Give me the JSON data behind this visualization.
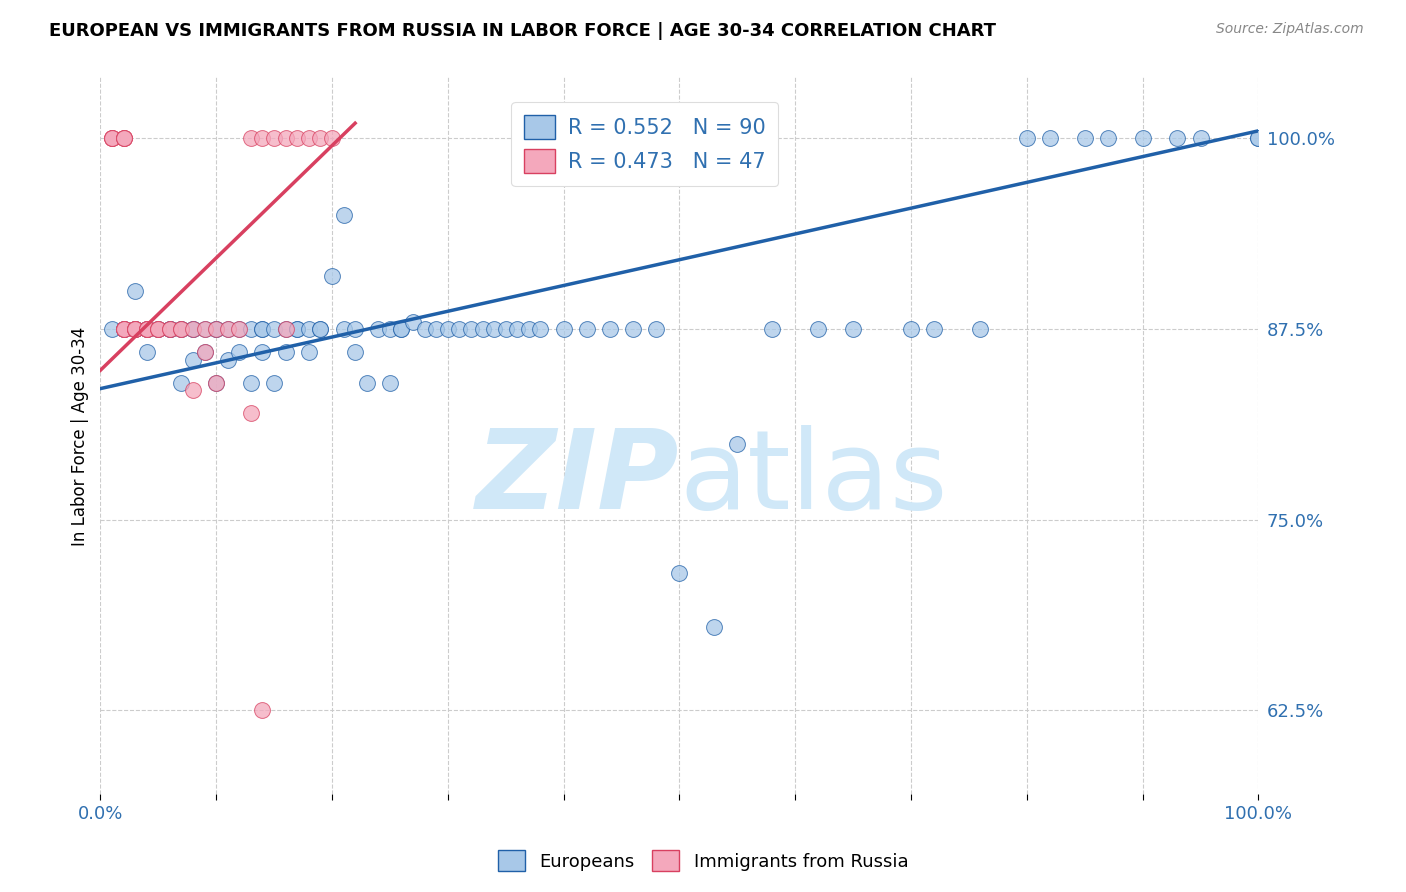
{
  "title": "EUROPEAN VS IMMIGRANTS FROM RUSSIA IN LABOR FORCE | AGE 30-34 CORRELATION CHART",
  "source": "Source: ZipAtlas.com",
  "ylabel": "In Labor Force | Age 30-34",
  "xlim": [
    0.0,
    1.0
  ],
  "ylim": [
    0.57,
    1.04
  ],
  "yticks": [
    0.625,
    0.75,
    0.875,
    1.0
  ],
  "ytick_labels": [
    "62.5%",
    "75.0%",
    "87.5%",
    "100.0%"
  ],
  "xticks": [
    0.0,
    0.1,
    0.2,
    0.3,
    0.4,
    0.5,
    0.6,
    0.7,
    0.8,
    0.9,
    1.0
  ],
  "xtick_labels": [
    "0.0%",
    "",
    "",
    "",
    "",
    "",
    "",
    "",
    "",
    "",
    "100.0%"
  ],
  "blue_R": 0.552,
  "blue_N": 90,
  "pink_R": 0.473,
  "pink_N": 47,
  "blue_color": "#a8c8e8",
  "pink_color": "#f4a8bc",
  "blue_line_color": "#2060a8",
  "pink_line_color": "#d84060",
  "watermark_zip": "ZIP",
  "watermark_atlas": "atlas",
  "watermark_color": "#d0e8f8",
  "legend_text_color": "#3070b0",
  "blue_scatter_x": [
    0.01,
    0.02,
    0.02,
    0.03,
    0.03,
    0.03,
    0.04,
    0.04,
    0.04,
    0.05,
    0.05,
    0.06,
    0.06,
    0.06,
    0.07,
    0.07,
    0.07,
    0.08,
    0.08,
    0.08,
    0.09,
    0.09,
    0.1,
    0.1,
    0.1,
    0.11,
    0.11,
    0.12,
    0.12,
    0.13,
    0.13,
    0.14,
    0.14,
    0.14,
    0.15,
    0.15,
    0.16,
    0.16,
    0.17,
    0.17,
    0.18,
    0.18,
    0.19,
    0.19,
    0.2,
    0.21,
    0.21,
    0.22,
    0.22,
    0.23,
    0.24,
    0.25,
    0.25,
    0.26,
    0.26,
    0.27,
    0.28,
    0.29,
    0.3,
    0.31,
    0.32,
    0.33,
    0.34,
    0.35,
    0.36,
    0.37,
    0.38,
    0.4,
    0.42,
    0.44,
    0.46,
    0.48,
    0.5,
    0.53,
    0.55,
    0.58,
    0.62,
    0.65,
    0.7,
    0.72,
    0.76,
    0.8,
    0.82,
    0.85,
    0.87,
    0.9,
    0.93,
    0.95,
    1.0,
    1.0
  ],
  "blue_scatter_y": [
    0.875,
    0.875,
    0.875,
    0.875,
    0.875,
    0.9,
    0.875,
    0.875,
    0.86,
    0.875,
    0.875,
    0.875,
    0.875,
    0.875,
    0.875,
    0.875,
    0.84,
    0.875,
    0.875,
    0.855,
    0.875,
    0.86,
    0.875,
    0.875,
    0.84,
    0.875,
    0.855,
    0.875,
    0.86,
    0.875,
    0.84,
    0.875,
    0.875,
    0.86,
    0.875,
    0.84,
    0.875,
    0.86,
    0.875,
    0.875,
    0.875,
    0.86,
    0.875,
    0.875,
    0.91,
    0.875,
    0.95,
    0.875,
    0.86,
    0.84,
    0.875,
    0.875,
    0.84,
    0.875,
    0.875,
    0.88,
    0.875,
    0.875,
    0.875,
    0.875,
    0.875,
    0.875,
    0.875,
    0.875,
    0.875,
    0.875,
    0.875,
    0.875,
    0.875,
    0.875,
    0.875,
    0.875,
    0.715,
    0.68,
    0.8,
    0.875,
    0.875,
    0.875,
    0.875,
    0.875,
    0.875,
    1.0,
    1.0,
    1.0,
    1.0,
    1.0,
    1.0,
    1.0,
    1.0,
    1.0
  ],
  "pink_scatter_x": [
    0.01,
    0.01,
    0.01,
    0.01,
    0.02,
    0.02,
    0.02,
    0.02,
    0.02,
    0.02,
    0.02,
    0.02,
    0.03,
    0.03,
    0.03,
    0.03,
    0.03,
    0.04,
    0.04,
    0.04,
    0.04,
    0.05,
    0.05,
    0.05,
    0.06,
    0.06,
    0.07,
    0.07,
    0.08,
    0.08,
    0.09,
    0.1,
    0.11,
    0.12,
    0.13,
    0.14,
    0.15,
    0.16,
    0.17,
    0.18,
    0.19,
    0.2,
    0.09,
    0.1,
    0.13,
    0.16,
    0.14
  ],
  "pink_scatter_y": [
    1.0,
    1.0,
    1.0,
    1.0,
    1.0,
    1.0,
    1.0,
    1.0,
    0.875,
    0.875,
    0.875,
    0.875,
    0.875,
    0.875,
    0.875,
    0.875,
    0.875,
    0.875,
    0.875,
    0.875,
    0.875,
    0.875,
    0.875,
    0.875,
    0.875,
    0.875,
    0.875,
    0.875,
    0.875,
    0.835,
    0.875,
    0.875,
    0.875,
    0.875,
    1.0,
    1.0,
    1.0,
    1.0,
    1.0,
    1.0,
    1.0,
    1.0,
    0.86,
    0.84,
    0.82,
    0.875,
    0.625
  ],
  "blue_line_x0": 0.0,
  "blue_line_y0": 0.836,
  "blue_line_x1": 1.0,
  "blue_line_y1": 1.005,
  "pink_line_x0": 0.0,
  "pink_line_y0": 0.848,
  "pink_line_x1": 0.22,
  "pink_line_y1": 1.01
}
